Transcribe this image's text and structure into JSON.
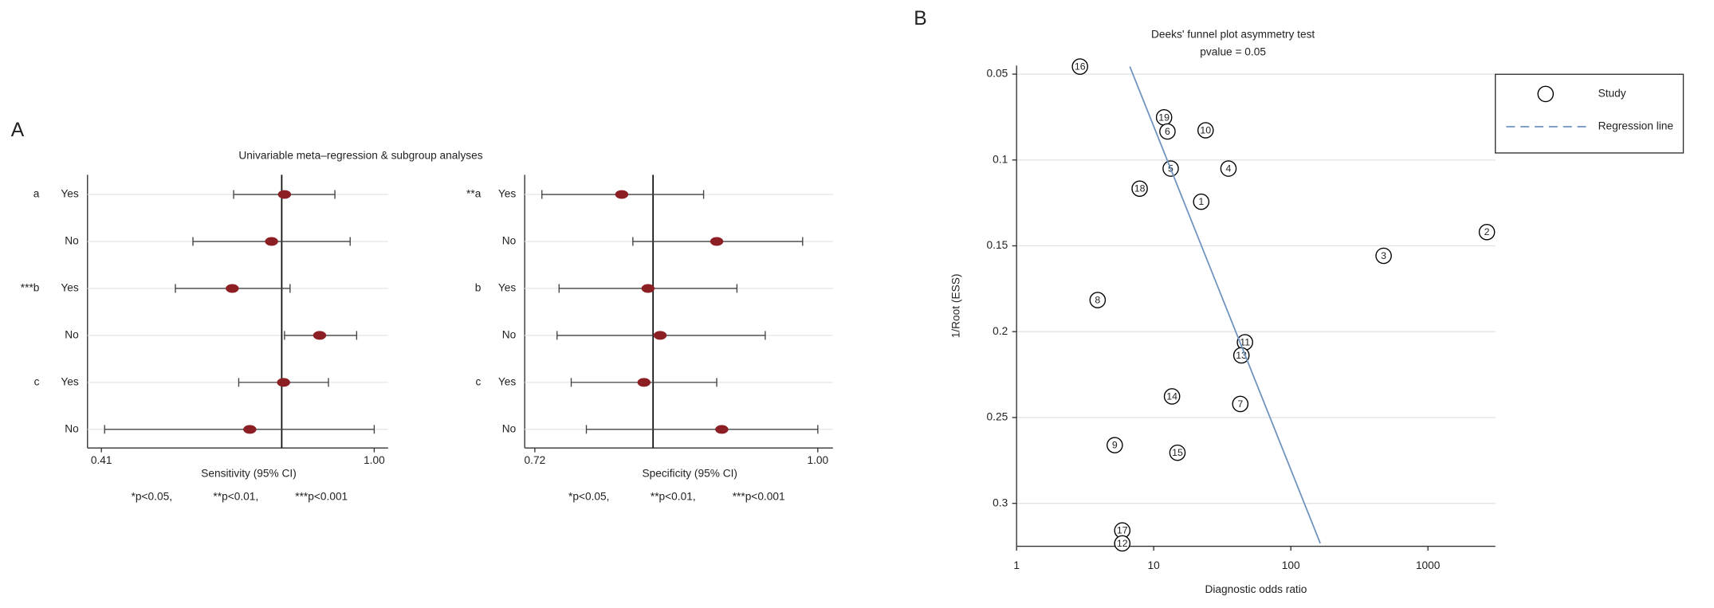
{
  "chart_data": [
    {
      "type": "forest",
      "panel": "A",
      "title": "Univariable meta–regression & subgroup analyses",
      "xlabel": "Sensitivity (95% CI)",
      "groups": [
        "a",
        null,
        "***b",
        null,
        "c",
        null
      ],
      "categories": [
        "Yes",
        "No",
        "Yes",
        "No",
        "Yes",
        "No"
      ],
      "values": [
        0.806,
        0.778,
        0.693,
        0.882,
        0.804,
        0.731
      ],
      "ci_low": [
        0.696,
        0.608,
        0.57,
        0.806,
        0.707,
        0.417
      ],
      "ci_high": [
        0.915,
        0.948,
        0.818,
        0.962,
        0.901,
        1.0
      ],
      "reference": 0.8,
      "xlim": [
        0.38,
        1.03
      ],
      "xticks": [
        0.41,
        {
          "value": 1,
          "label": "1.00"
        }
      ],
      "grid": true,
      "color": "#8b1f24",
      "footnotes": [
        "*p<0.05,",
        "**p<0.01,",
        "***p<0.001"
      ]
    },
    {
      "type": "forest",
      "xlabel": "Specificity (95% CI)",
      "groups": [
        "**a",
        null,
        "b",
        null,
        "c",
        null
      ],
      "categories": [
        "Yes",
        "No",
        "Yes",
        "No",
        "Yes",
        "No"
      ],
      "values": [
        0.806,
        0.9,
        0.832,
        0.844,
        0.828,
        0.905
      ],
      "ci_low": [
        0.727,
        0.817,
        0.744,
        0.742,
        0.756,
        0.771
      ],
      "ci_high": [
        0.887,
        0.985,
        0.92,
        0.948,
        0.9,
        1.0
      ],
      "reference": 0.837,
      "xlim": [
        0.71,
        1.015
      ],
      "xticks": [
        0.72,
        {
          "value": 1,
          "label": "1.00"
        }
      ],
      "grid": true,
      "color": "#8b1f24",
      "footnotes": [
        "*p<0.05,",
        "**p<0.01,",
        "***p<0.001"
      ]
    },
    {
      "type": "scatter",
      "panel": "B",
      "title": "Deeks' funnel plot asymmetry test",
      "subtitle": "pvalue = 0.05",
      "xlabel": "Diagnostic odds ratio",
      "ylabel": "1/Root (ESS)",
      "xscale": "log",
      "xlim": [
        1,
        3100
      ],
      "xticks": [
        1,
        10,
        100,
        1000
      ],
      "ylim": [
        0.045,
        0.325
      ],
      "yticks": [
        0.05,
        0.1,
        0.15,
        0.2,
        0.25,
        0.3
      ],
      "grid": true,
      "legend": "right",
      "series": [
        {
          "name": "Study",
          "color": "#000000",
          "labels": [
            "16",
            "19",
            "6",
            "10",
            "5",
            "4",
            "18",
            "1",
            "2",
            "3",
            "8",
            "11",
            "13",
            "14",
            "7",
            "9",
            "15",
            "17",
            "12"
          ],
          "x": [
            2.9,
            11.9,
            12.6,
            23.9,
            13.3,
            35.1,
            7.9,
            22.2,
            2690,
            475,
            3.9,
            46.3,
            43.6,
            13.6,
            42.8,
            5.2,
            14.9,
            5.9,
            5.9
          ],
          "y": [
            0.0456,
            0.0752,
            0.0834,
            0.0827,
            0.105,
            0.105,
            0.1167,
            0.1243,
            0.142,
            0.1558,
            0.1816,
            0.2062,
            0.2138,
            0.2377,
            0.2421,
            0.2661,
            0.2705,
            0.3158,
            0.3233
          ]
        },
        {
          "name": "Regression line",
          "color": "#6f93bd",
          "x": [
            6.7,
            164
          ],
          "y": [
            0.0456,
            0.3233
          ]
        }
      ]
    }
  ]
}
